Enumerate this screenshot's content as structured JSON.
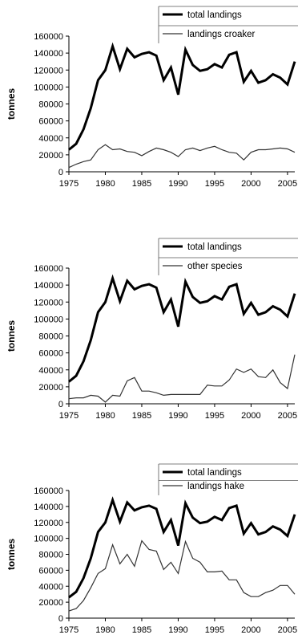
{
  "chart_data": [
    {
      "type": "line",
      "ylabel": "tonnes",
      "xlabel": "",
      "ylim": [
        0,
        160000
      ],
      "yticks": [
        0,
        20000,
        40000,
        60000,
        80000,
        100000,
        120000,
        140000,
        160000
      ],
      "xlim": [
        1975,
        2006
      ],
      "xticks": [
        1975,
        1980,
        1985,
        1990,
        1995,
        2000,
        2005
      ],
      "grid": false,
      "legend_position": "top-right",
      "x": [
        1975,
        1976,
        1977,
        1978,
        1979,
        1980,
        1981,
        1982,
        1983,
        1984,
        1985,
        1986,
        1987,
        1988,
        1989,
        1990,
        1991,
        1992,
        1993,
        1994,
        1995,
        1996,
        1997,
        1998,
        1999,
        2000,
        2001,
        2002,
        2003,
        2004,
        2005,
        2006
      ],
      "series": [
        {
          "name": "total landings",
          "color": "#000000",
          "width": "thick",
          "values": [
            26000,
            33000,
            50000,
            75000,
            108000,
            120000,
            148000,
            121000,
            145000,
            135000,
            139000,
            141000,
            137000,
            108000,
            123000,
            91000,
            144000,
            126000,
            119000,
            121000,
            127000,
            123000,
            138000,
            141000,
            106000,
            119000,
            105000,
            108000,
            115000,
            111000,
            103000,
            130000
          ]
        },
        {
          "name": "landings croaker",
          "color": "#333333",
          "width": "thin",
          "values": [
            5000,
            9000,
            12000,
            14000,
            26000,
            32000,
            26000,
            27000,
            24000,
            23000,
            19000,
            24000,
            28000,
            26000,
            23000,
            18000,
            26000,
            28000,
            25000,
            28000,
            30000,
            26000,
            23000,
            22000,
            14000,
            23000,
            26000,
            26000,
            27000,
            28000,
            27000,
            23000
          ]
        }
      ]
    },
    {
      "type": "line",
      "ylabel": "tonnes",
      "xlabel": "",
      "ylim": [
        0,
        160000
      ],
      "yticks": [
        0,
        20000,
        40000,
        60000,
        80000,
        100000,
        120000,
        140000,
        160000
      ],
      "xlim": [
        1975,
        2006
      ],
      "xticks": [
        1975,
        1980,
        1985,
        1990,
        1995,
        2000,
        2005
      ],
      "grid": false,
      "legend_position": "top-right",
      "x": [
        1975,
        1976,
        1977,
        1978,
        1979,
        1980,
        1981,
        1982,
        1983,
        1984,
        1985,
        1986,
        1987,
        1988,
        1989,
        1990,
        1991,
        1992,
        1993,
        1994,
        1995,
        1996,
        1997,
        1998,
        1999,
        2000,
        2001,
        2002,
        2003,
        2004,
        2005,
        2006
      ],
      "series": [
        {
          "name": "total landings",
          "color": "#000000",
          "width": "thick",
          "values": [
            26000,
            33000,
            50000,
            75000,
            108000,
            120000,
            148000,
            121000,
            145000,
            135000,
            139000,
            141000,
            137000,
            108000,
            123000,
            91000,
            144000,
            126000,
            119000,
            121000,
            127000,
            123000,
            138000,
            141000,
            106000,
            119000,
            105000,
            108000,
            115000,
            111000,
            103000,
            130000
          ]
        },
        {
          "name": "other species",
          "color": "#333333",
          "width": "thin",
          "values": [
            6000,
            7000,
            7000,
            10000,
            9000,
            2000,
            10000,
            9000,
            27000,
            31000,
            15000,
            15000,
            13000,
            10000,
            11000,
            11000,
            11000,
            11000,
            11000,
            22000,
            21000,
            21000,
            28000,
            41000,
            37000,
            41000,
            32000,
            31000,
            40000,
            25000,
            18000,
            58000
          ]
        }
      ]
    },
    {
      "type": "line",
      "ylabel": "tonnes",
      "xlabel": "",
      "ylim": [
        0,
        160000
      ],
      "yticks": [
        0,
        20000,
        40000,
        60000,
        80000,
        100000,
        120000,
        140000,
        160000
      ],
      "xlim": [
        1975,
        2006
      ],
      "xticks": [
        1975,
        1980,
        1985,
        1990,
        1995,
        2000,
        2005
      ],
      "grid": false,
      "legend_position": "top-right",
      "x": [
        1975,
        1976,
        1977,
        1978,
        1979,
        1980,
        1981,
        1982,
        1983,
        1984,
        1985,
        1986,
        1987,
        1988,
        1989,
        1990,
        1991,
        1992,
        1993,
        1994,
        1995,
        1996,
        1997,
        1998,
        1999,
        2000,
        2001,
        2002,
        2003,
        2004,
        2005,
        2006
      ],
      "series": [
        {
          "name": "total landings",
          "color": "#000000",
          "width": "thick",
          "values": [
            26000,
            33000,
            50000,
            75000,
            108000,
            120000,
            148000,
            121000,
            145000,
            135000,
            139000,
            141000,
            137000,
            108000,
            123000,
            91000,
            144000,
            126000,
            119000,
            121000,
            127000,
            123000,
            138000,
            141000,
            106000,
            119000,
            105000,
            108000,
            115000,
            111000,
            103000,
            130000
          ]
        },
        {
          "name": "landings hake",
          "color": "#333333",
          "width": "thin",
          "values": [
            9000,
            12000,
            22000,
            38000,
            56000,
            62000,
            92000,
            68000,
            80000,
            65000,
            97000,
            86000,
            84000,
            61000,
            70000,
            56000,
            96000,
            75000,
            70000,
            58000,
            58000,
            59000,
            48000,
            48000,
            32000,
            27000,
            27000,
            32000,
            35000,
            41000,
            41000,
            30000
          ]
        }
      ]
    }
  ]
}
